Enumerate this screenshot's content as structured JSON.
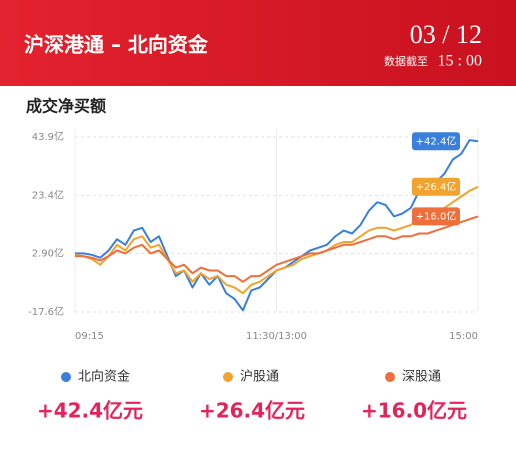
{
  "header": {
    "title": "沪深港通 – 北向资金",
    "date": "03 / 12",
    "asof_label": "数据截至",
    "asof_time": "15 : 00"
  },
  "section_title": "成交净买额",
  "chart_data": {
    "type": "line",
    "x": [
      0,
      5,
      10,
      15,
      20,
      25,
      30,
      35,
      40,
      45,
      50,
      55,
      60,
      65,
      70,
      75,
      80,
      85,
      90,
      95,
      100,
      105,
      110,
      115,
      120,
      125,
      130,
      135,
      140,
      145,
      150,
      155,
      160,
      165,
      170,
      175,
      180,
      185,
      190,
      195,
      200,
      205,
      210,
      215,
      220,
      225,
      230,
      235,
      240
    ],
    "xlim": [
      0,
      240
    ],
    "xticks": [
      {
        "value": 0,
        "label": "09:15"
      },
      {
        "value": 120,
        "label": "11:30/13:00"
      },
      {
        "value": 240,
        "label": "15:00"
      }
    ],
    "ylim": [
      -17.6,
      43.9
    ],
    "yticks": [
      {
        "value": 43.9,
        "label": "43.9亿"
      },
      {
        "value": 23.4,
        "label": "23.4亿"
      },
      {
        "value": 2.9,
        "label": "2.90亿"
      },
      {
        "value": -17.6,
        "label": "-17.6亿"
      }
    ],
    "grid": true,
    "series": [
      {
        "name": "北向资金",
        "color": "#3a7fd9",
        "end_label": "+42.4亿",
        "total_label": "+42.4亿元",
        "values": [
          3.0,
          3.0,
          2.5,
          1.5,
          4,
          8,
          6,
          11,
          12,
          7,
          9,
          2,
          -5,
          -3,
          -9,
          -4,
          -8,
          -5,
          -11,
          -13,
          -17,
          -10,
          -9,
          -6,
          -3,
          -2,
          0,
          2,
          4,
          5,
          6,
          9,
          11,
          10,
          13,
          18,
          21,
          20,
          16,
          17,
          19,
          25,
          24,
          28,
          31,
          36,
          38,
          42.8,
          42.4
        ]
      },
      {
        "name": "沪股通",
        "color": "#f0a32e",
        "end_label": "+26.4亿",
        "total_label": "+26.4亿元",
        "values": [
          2.5,
          2.0,
          1.0,
          -1,
          2,
          6,
          4,
          8,
          9,
          5,
          6,
          1,
          -4,
          -3,
          -7,
          -4,
          -6,
          -5,
          -8,
          -9,
          -11,
          -8,
          -7,
          -5,
          -3,
          -2,
          -1,
          1,
          2,
          3,
          4,
          6,
          7,
          7,
          9,
          11,
          12,
          12,
          11,
          12,
          13,
          15,
          15,
          17,
          19,
          21,
          23,
          25,
          26.4
        ]
      },
      {
        "name": "深股通",
        "color": "#ec6f3c",
        "end_label": "+16.0亿",
        "total_label": "+16.0亿元",
        "values": [
          2.0,
          2.0,
          1.5,
          0.5,
          2,
          4,
          3,
          5,
          6,
          3,
          4,
          1,
          -2,
          -1,
          -4,
          -2,
          -3,
          -3,
          -5,
          -5,
          -7,
          -5,
          -5,
          -3,
          -1,
          0,
          1,
          2,
          3,
          3,
          4,
          5,
          6,
          6,
          7,
          8,
          9,
          9,
          8,
          9,
          9,
          10,
          10,
          11,
          12,
          13,
          14,
          15,
          16.0
        ]
      }
    ]
  }
}
